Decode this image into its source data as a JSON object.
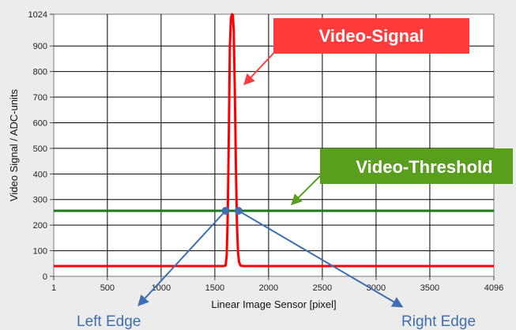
{
  "chart_data": {
    "type": "line",
    "xlabel": "Linear Image Sensor [pixel]",
    "ylabel": "Video Signal / ADC-units",
    "xlim": [
      1,
      4096
    ],
    "ylim": [
      0,
      1024
    ],
    "x_ticks": [
      1,
      500,
      1000,
      1500,
      2000,
      2500,
      3000,
      3500,
      4096
    ],
    "y_ticks": [
      0,
      100,
      200,
      300,
      400,
      500,
      600,
      700,
      800,
      900,
      1024
    ],
    "grid": true,
    "series": [
      {
        "color": "#ff0000",
        "x": [
          1,
          1580,
          1600,
          1610,
          1620,
          1630,
          1640,
          1650,
          1660,
          1668,
          1676,
          1686,
          1696,
          1706,
          1716,
          1726,
          1740,
          1760,
          4096
        ],
        "y": [
          40,
          40,
          42,
          80,
          240,
          560,
          900,
          1010,
          1024,
          1020,
          960,
          720,
          420,
          200,
          90,
          55,
          42,
          40,
          40
        ]
      },
      {
        "color": "#1a7a1a",
        "x": [
          1,
          4096
        ],
        "y": [
          256,
          256
        ]
      }
    ],
    "edge_points": [
      {
        "x": 1600,
        "y": 256
      },
      {
        "x": 1720,
        "y": 256
      }
    ],
    "annotations": {
      "video_signal": "Video-Signal",
      "video_threshold": "Video-Threshold",
      "left_edge": "Left Edge",
      "right_edge": "Right Edge"
    }
  },
  "colors": {
    "signal_callout": "#ff3b3b",
    "threshold_callout": "#5a9e1e",
    "edge_marker": "#3e6fb0",
    "edge_text": "#3e6fb0"
  }
}
